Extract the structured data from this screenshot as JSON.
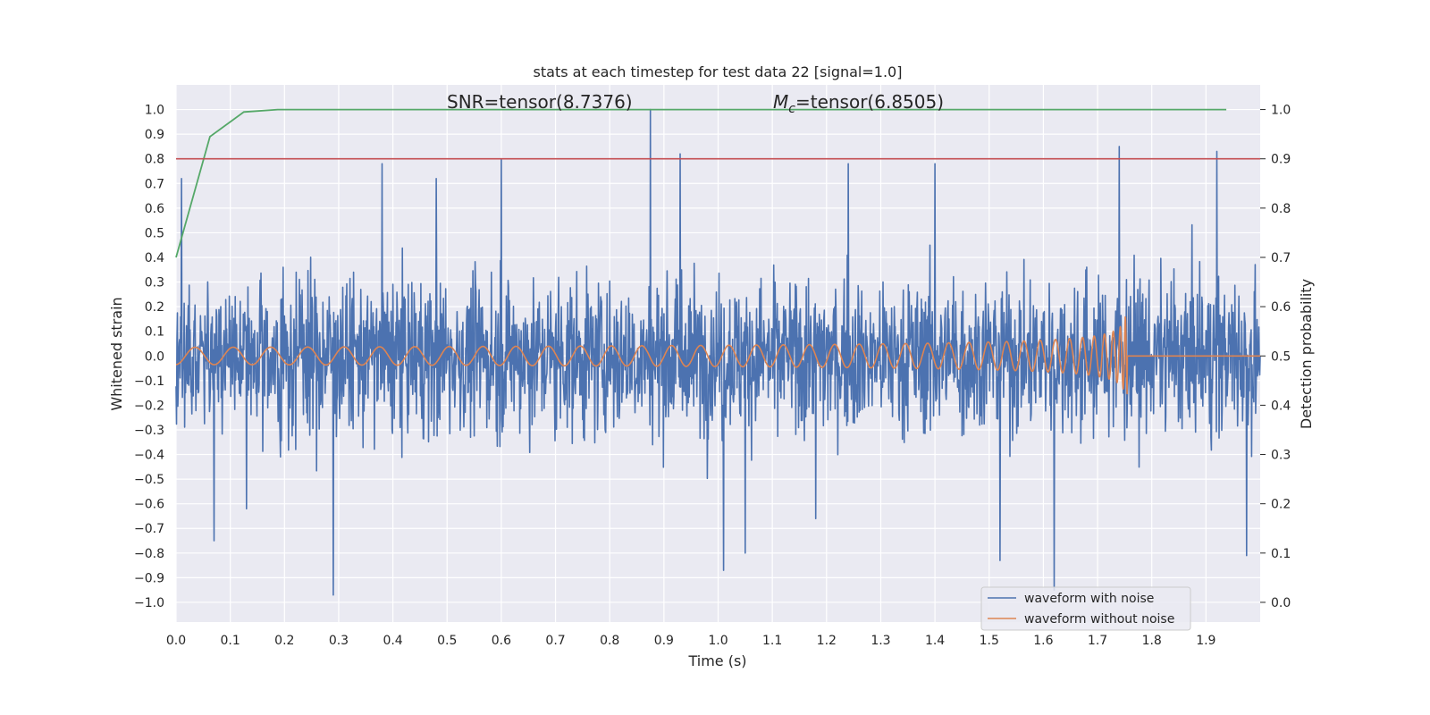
{
  "chart_data": {
    "type": "line",
    "title": "stats at each timestep for test data 22 [signal=1.0]",
    "xlabel": "Time (s)",
    "ylabel_left": "Whitened strain",
    "ylabel_right": "Detection probability",
    "xlim": [
      0.0,
      2.0
    ],
    "ylim_left": [
      -1.08,
      1.1
    ],
    "ylim_right": [
      -0.04,
      1.05
    ],
    "x_ticks": [
      "0.0",
      "0.1",
      "0.2",
      "0.3",
      "0.4",
      "0.5",
      "0.6",
      "0.7",
      "0.8",
      "0.9",
      "1.0",
      "1.1",
      "1.2",
      "1.3",
      "1.4",
      "1.5",
      "1.6",
      "1.7",
      "1.8",
      "1.9"
    ],
    "y_left_ticks": [
      "−1.0",
      "−0.9",
      "−0.8",
      "−0.7",
      "−0.6",
      "−0.5",
      "−0.4",
      "−0.3",
      "−0.2",
      "−0.1",
      "0.0",
      "0.1",
      "0.2",
      "0.3",
      "0.4",
      "0.5",
      "0.6",
      "0.7",
      "0.8",
      "0.9",
      "1.0"
    ],
    "y_right_ticks": [
      "0.0",
      "0.1",
      "0.2",
      "0.3",
      "0.4",
      "0.5",
      "0.6",
      "0.7",
      "0.8",
      "0.9",
      "1.0"
    ],
    "grid": true,
    "annotations": {
      "snr": "SNR=tensor(8.7376)",
      "mc_symbol": "M",
      "mc_sub": "c",
      "mc_value": "=tensor(6.8505)"
    },
    "legend_position": "lower-right",
    "series": [
      {
        "name": "waveform with noise",
        "color": "#4c72b0",
        "axis": "left",
        "kind": "noise",
        "peaks": [
          [
            0.01,
            0.72
          ],
          [
            0.07,
            -0.75
          ],
          [
            0.13,
            -0.62
          ],
          [
            0.29,
            -0.97
          ],
          [
            0.38,
            0.78
          ],
          [
            0.48,
            0.72
          ],
          [
            0.6,
            0.8
          ],
          [
            0.875,
            1.0
          ],
          [
            0.93,
            0.82
          ],
          [
            1.01,
            -0.87
          ],
          [
            1.05,
            -0.8
          ],
          [
            1.18,
            -0.66
          ],
          [
            1.24,
            0.78
          ],
          [
            1.4,
            0.78
          ],
          [
            1.52,
            -0.83
          ],
          [
            1.62,
            -0.95
          ],
          [
            1.74,
            0.85
          ],
          [
            1.92,
            0.83
          ],
          [
            1.975,
            -0.81
          ]
        ]
      },
      {
        "name": "waveform without noise",
        "color": "#dd8452",
        "axis": "left",
        "kind": "chirp",
        "f0": 14.0,
        "tc": 1.755,
        "amp0": 0.035
      },
      {
        "name": "",
        "color": "#55a868",
        "axis": "right",
        "kind": "line",
        "x": [
          0.0,
          0.0625,
          0.125,
          0.1875,
          0.25,
          0.5,
          1.0,
          1.5,
          1.9375
        ],
        "y": [
          0.7,
          0.945,
          0.995,
          1.0,
          1.0,
          1.0,
          1.0,
          1.0,
          1.0
        ]
      },
      {
        "name": "",
        "color": "#c44e52",
        "axis": "right",
        "kind": "hline",
        "y": 0.9
      }
    ]
  }
}
